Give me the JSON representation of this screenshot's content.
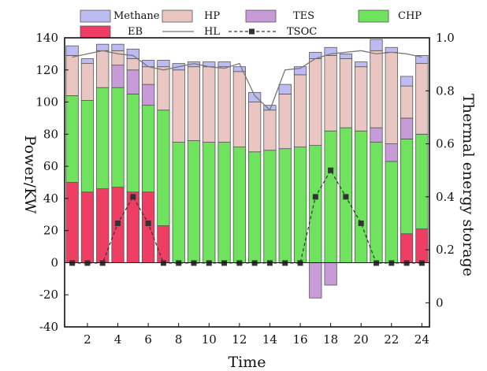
{
  "chart_data": {
    "type": "bar",
    "xlabel": "Time",
    "ylabel": "Power/KW",
    "y2label": "Thermal energy storage",
    "x": [
      1,
      2,
      3,
      4,
      5,
      6,
      7,
      8,
      9,
      10,
      11,
      12,
      13,
      14,
      15,
      16,
      17,
      18,
      19,
      20,
      21,
      22,
      23,
      24
    ],
    "x_ticks": [
      2,
      4,
      6,
      8,
      10,
      12,
      14,
      16,
      18,
      20,
      22,
      24
    ],
    "ylim": [
      -40,
      140
    ],
    "y_ticks": [
      -40,
      -20,
      0,
      20,
      40,
      60,
      80,
      100,
      120,
      140
    ],
    "y2_ticks": [
      {
        "label": "0",
        "value": 0.0
      },
      {
        "label": "0.2",
        "value": 0.2
      },
      {
        "label": "0.4",
        "value": 0.4
      },
      {
        "label": "0.6",
        "value": 0.6
      },
      {
        "label": "0.8",
        "value": 0.8
      },
      {
        "label": "1.0",
        "value": 1.0
      }
    ],
    "legend_position": "top",
    "series": [
      {
        "name": "EB",
        "kind": "bar",
        "color": "#ee3e63",
        "values": [
          50,
          44,
          46,
          47,
          44,
          44,
          23,
          0,
          0,
          0,
          0,
          0,
          0,
          0,
          0,
          0,
          0,
          0,
          0,
          0,
          0,
          0,
          18,
          21
        ]
      },
      {
        "name": "CHP",
        "kind": "bar",
        "color": "#6fe35d",
        "values": [
          54,
          57,
          63,
          62,
          61,
          54,
          72,
          75,
          76,
          75,
          75,
          72,
          69,
          70,
          71,
          72,
          73,
          82,
          84,
          82,
          75,
          63,
          59,
          59
        ]
      },
      {
        "name": "TES",
        "kind": "bar",
        "color": "#c79bd8",
        "values": [
          0,
          0,
          0,
          14,
          15,
          13,
          0,
          0,
          0,
          0,
          0,
          0,
          0,
          0,
          0,
          0,
          -22,
          -14,
          0,
          0,
          9,
          11,
          13,
          0
        ]
      },
      {
        "name": "HP",
        "kind": "bar",
        "color": "#e9c6c2",
        "values": [
          25,
          23,
          23,
          9,
          7,
          11,
          27,
          45,
          46,
          47,
          47,
          47,
          31,
          25,
          34,
          45,
          54,
          47,
          43,
          40,
          48,
          57,
          20,
          44
        ]
      },
      {
        "name": "Methane",
        "kind": "bar",
        "color": "#bcbcf2",
        "values": [
          6,
          3,
          4,
          4,
          6,
          4,
          4,
          4,
          3,
          3,
          3,
          3,
          6,
          3,
          6,
          5,
          4,
          5,
          3,
          3,
          7,
          3,
          6,
          5
        ]
      },
      {
        "name": "HL",
        "kind": "line",
        "color": "#777777",
        "values": [
          128,
          130,
          132,
          130,
          129,
          122,
          120,
          122,
          124,
          122,
          121,
          124,
          104,
          95,
          120,
          121,
          127,
          130,
          131,
          132,
          130,
          131,
          130,
          128
        ]
      },
      {
        "name": "TSOC",
        "kind": "line",
        "axis": "right",
        "color": "#333333",
        "values": [
          0.15,
          0.15,
          0.15,
          0.3,
          0.4,
          0.3,
          0.15,
          0.15,
          0.15,
          0.15,
          0.15,
          0.15,
          0.15,
          0.15,
          0.15,
          0.15,
          0.4,
          0.5,
          0.4,
          0.3,
          0.15,
          0.15,
          0.15,
          0.15
        ]
      }
    ]
  }
}
